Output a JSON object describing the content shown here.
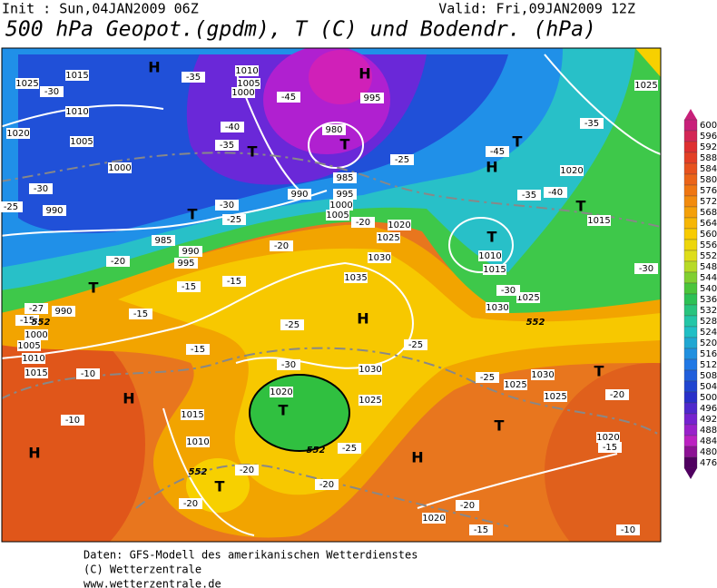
{
  "header": {
    "init": "Init : Sun,04JAN2009 06Z",
    "valid": "Valid: Fri,09JAN2009 12Z",
    "title": "500 hPa Geopot.(gpdm), T (C) und Bodendr. (hPa)"
  },
  "colorbar": {
    "ticks": [
      600,
      596,
      592,
      588,
      584,
      580,
      576,
      572,
      568,
      564,
      560,
      556,
      552,
      548,
      544,
      540,
      536,
      532,
      528,
      524,
      520,
      516,
      512,
      508,
      504,
      500,
      496,
      492,
      488,
      484,
      480,
      476
    ]
  },
  "map": {
    "labels": [
      "H",
      "H",
      "H",
      "H",
      "H",
      "H",
      "H",
      "T",
      "T",
      "T",
      "T",
      "T",
      "T",
      "T",
      "T",
      "T",
      "T",
      "T",
      "1025",
      "1015",
      "1010",
      "1020",
      "1005",
      "1000",
      "990",
      "985",
      "990",
      "995",
      "1035",
      "1030",
      "1025",
      "1020",
      "1030",
      "1025",
      "1020",
      "1015",
      "1010",
      "1020",
      "1025",
      "1020",
      "1015",
      "1010",
      "1015",
      "1025",
      "1030",
      "1030",
      "1025",
      "1025",
      "1020",
      "1000",
      "1005",
      "1010",
      "1015",
      "990",
      "995",
      "1000",
      "1005",
      "985",
      "980",
      "990",
      "1010",
      "1005",
      "1000",
      "995",
      "-30",
      "-35",
      "-45",
      "-40",
      "-35",
      "-30",
      "-25",
      "-20",
      "-15",
      "-25",
      "-30",
      "-25",
      "-20",
      "-20",
      "-20",
      "-15",
      "-10",
      "-10",
      "-15",
      "-20",
      "-10",
      "-15",
      "-20",
      "-25",
      "-25",
      "-30",
      "-35",
      "-40",
      "-45",
      "-35",
      "-25",
      "-20",
      "-30",
      "-20",
      "-25",
      "-30",
      "-27",
      "-15",
      "-15",
      "-15",
      "552",
      "552",
      "552",
      "552"
    ]
  },
  "footer": {
    "lines": [
      "Daten: GFS-Modell des amerikanischen Wetterdienstes",
      "(C) Wetterzentrale",
      "www.wetterzentrale.de"
    ]
  }
}
